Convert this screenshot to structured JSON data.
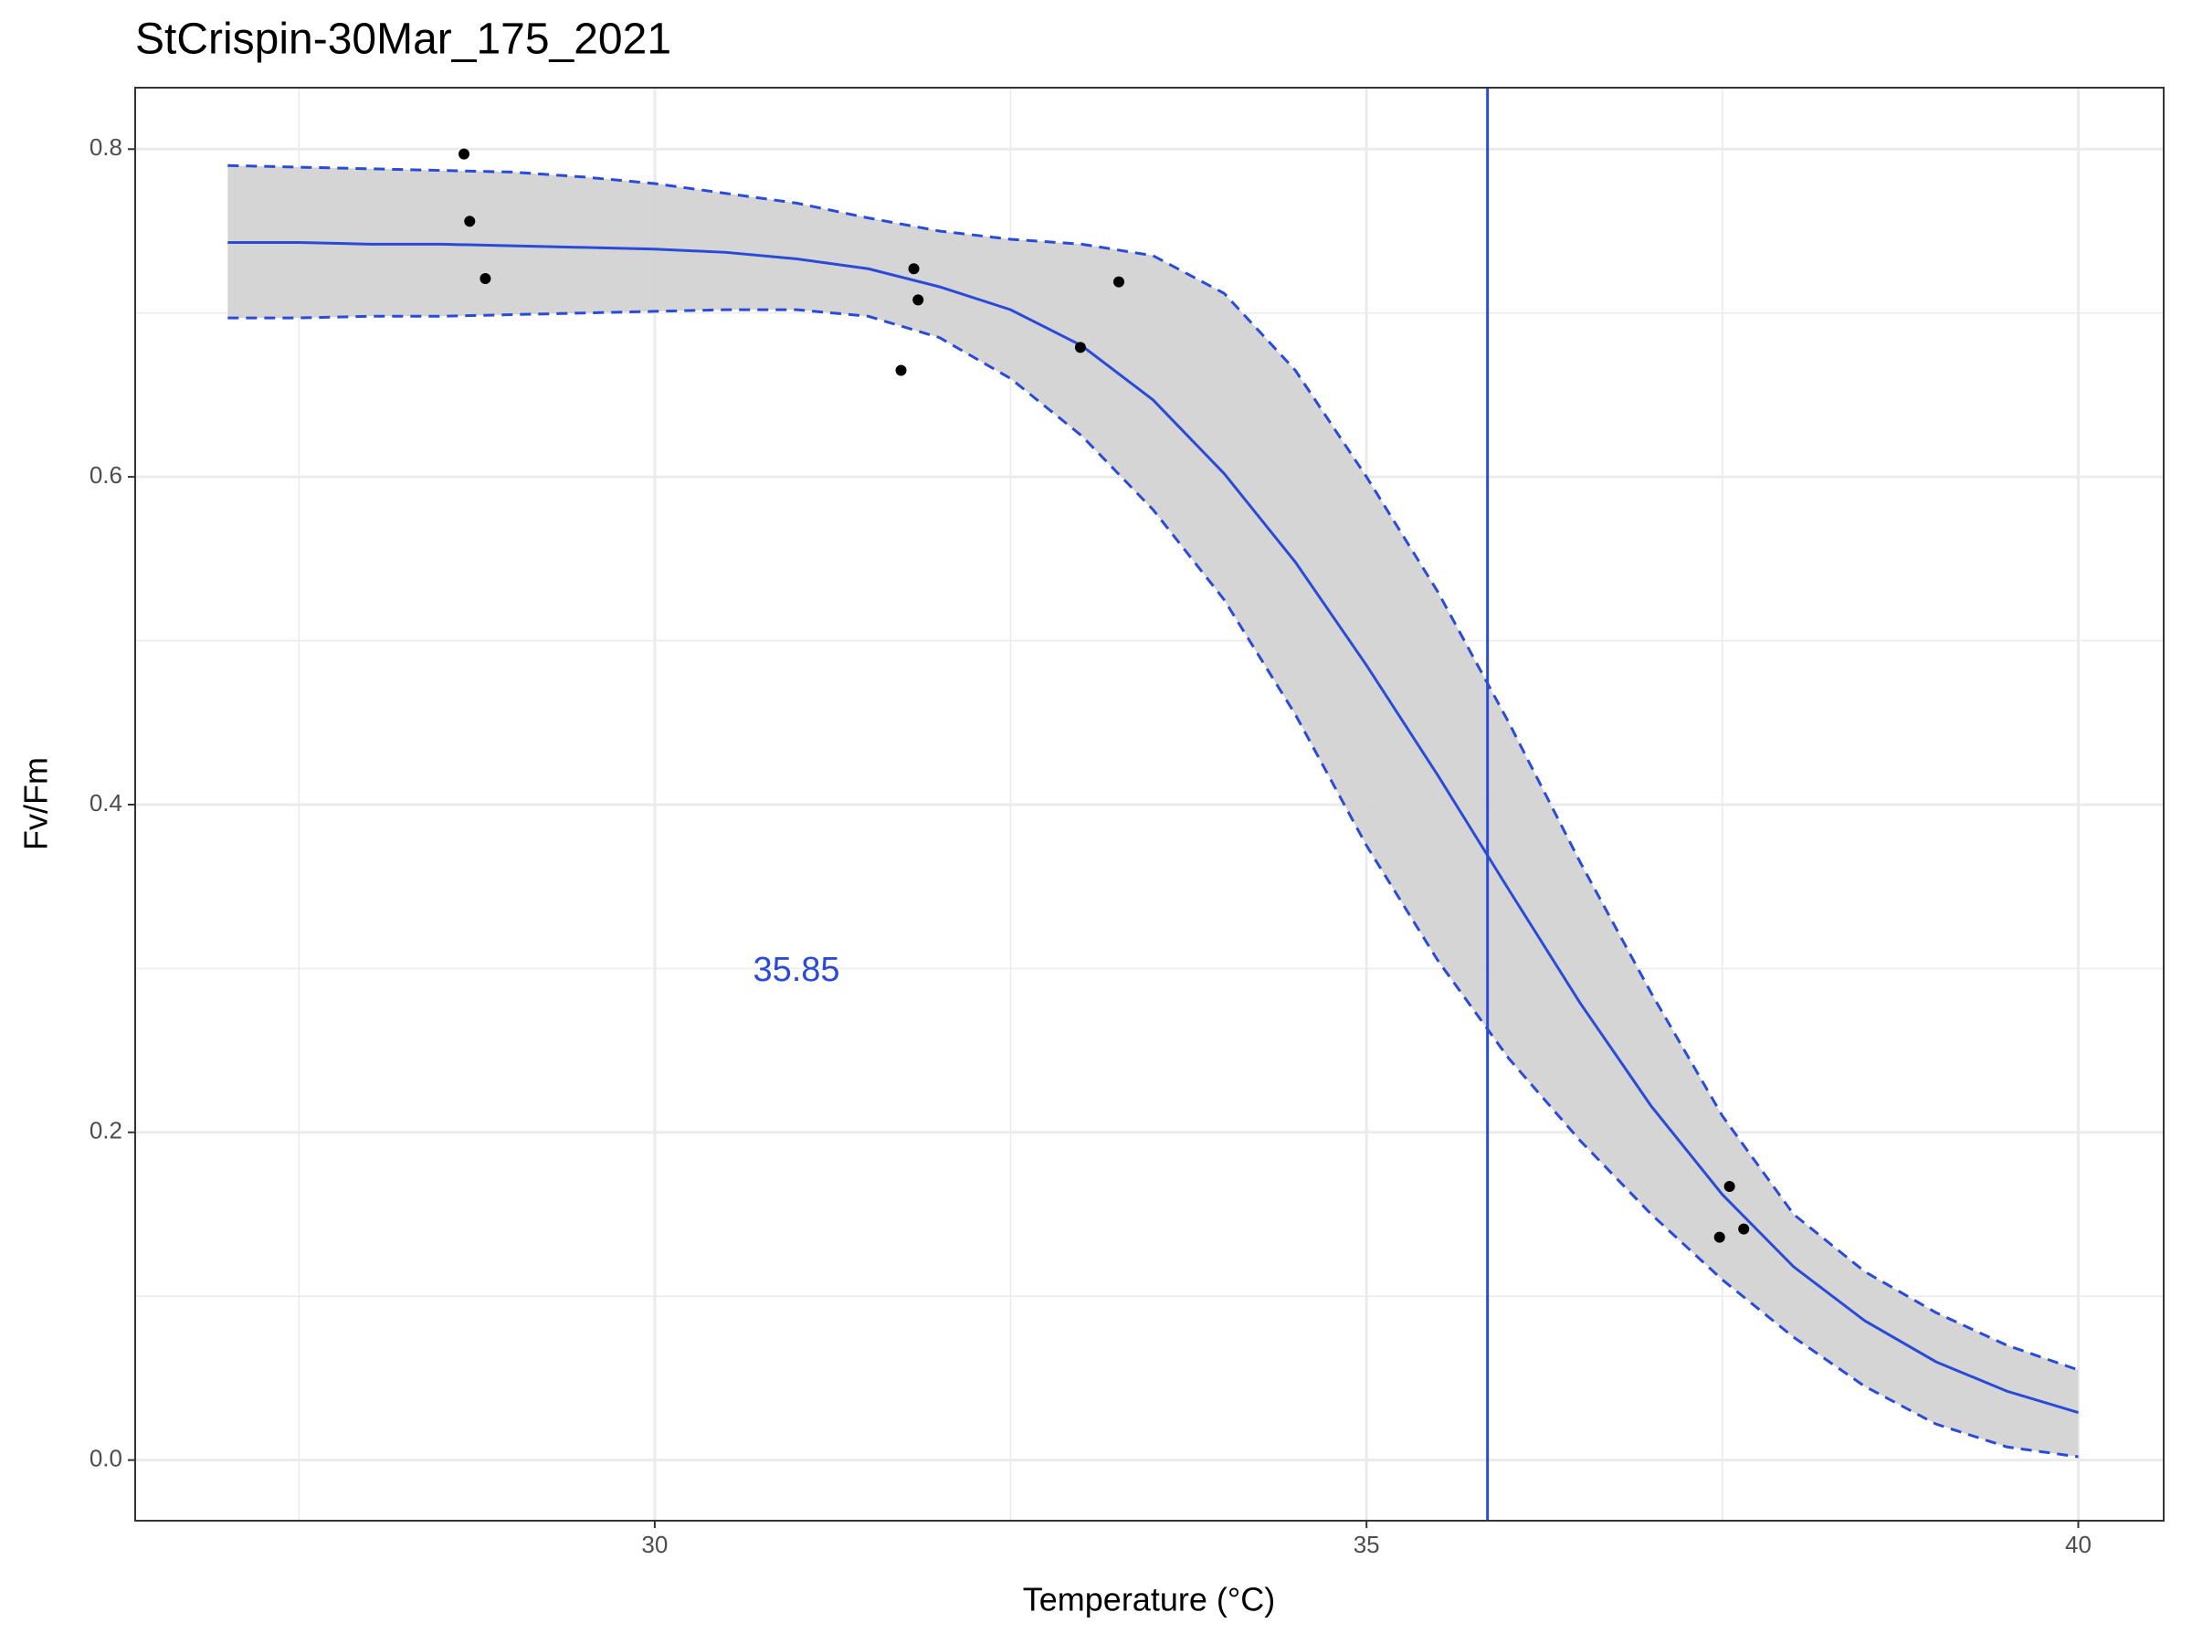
{
  "chart_data": {
    "type": "dose-response",
    "title": "StCrispin-30Mar_175_2021",
    "x_label": "Temperature (°C)",
    "y_label": "Fv/Fm",
    "xlim": [
      26.35,
      40.6
    ],
    "ylim": [
      -0.037,
      0.8375
    ],
    "xticks": [
      30,
      35,
      40
    ],
    "yticks": [
      {
        "value": 0,
        "label": "0.0"
      },
      0.2,
      0.4,
      0.6,
      0.8
    ],
    "minor_xticks": [
      27.5,
      32.5,
      37.5
    ],
    "minor_yticks": [
      0.1,
      0.3,
      0.5,
      0.7
    ],
    "grid": true,
    "fit": {
      "color": "#2a4bd7",
      "band_color": "#d3d3d3",
      "x": [
        27,
        27.5,
        28,
        28.5,
        29,
        29.5,
        30,
        30.5,
        31,
        31.5,
        32,
        32.5,
        33,
        33.5,
        34,
        34.5,
        35,
        35.5,
        36,
        36.5,
        37,
        37.5,
        38,
        38.5,
        39,
        39.5,
        40
      ],
      "y": [
        0.743,
        0.743,
        0.742,
        0.742,
        0.741,
        0.74,
        0.739,
        0.737,
        0.733,
        0.727,
        0.716,
        0.702,
        0.68,
        0.647,
        0.602,
        0.548,
        0.485,
        0.418,
        0.348,
        0.279,
        0.216,
        0.162,
        0.118,
        0.085,
        0.06,
        0.042,
        0.029
      ],
      "upper": [
        0.79,
        0.789,
        0.788,
        0.787,
        0.786,
        0.783,
        0.779,
        0.773,
        0.767,
        0.758,
        0.75,
        0.745,
        0.742,
        0.735,
        0.712,
        0.665,
        0.6,
        0.53,
        0.45,
        0.365,
        0.285,
        0.21,
        0.15,
        0.115,
        0.09,
        0.07,
        0.055
      ],
      "lower": [
        0.697,
        0.697,
        0.698,
        0.698,
        0.699,
        0.7,
        0.701,
        0.702,
        0.702,
        0.698,
        0.685,
        0.66,
        0.625,
        0.58,
        0.525,
        0.455,
        0.375,
        0.305,
        0.245,
        0.195,
        0.15,
        0.11,
        0.075,
        0.045,
        0.022,
        0.008,
        0.002
      ]
    },
    "points": {
      "color": "#000000",
      "x": [
        28.66,
        28.7,
        28.81,
        31.73,
        31.82,
        31.85,
        32.99,
        33.26,
        37.48,
        37.55,
        37.65
      ],
      "y": [
        0.797,
        0.756,
        0.721,
        0.665,
        0.727,
        0.708,
        0.679,
        0.719,
        0.136,
        0.167,
        0.141
      ]
    },
    "vline": {
      "value": 35.85,
      "color": "#2a4bd7"
    }
  }
}
